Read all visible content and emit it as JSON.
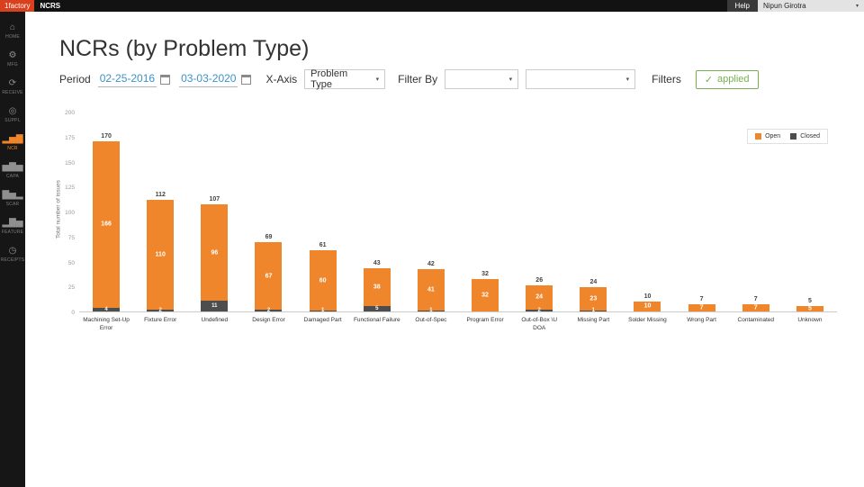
{
  "topbar": {
    "brand": "1factory",
    "app_name": "NCRS",
    "help_label": "Help",
    "user_name": "Nipun Girotra"
  },
  "icons": {
    "chevron": "▾",
    "caret": "▾",
    "check": "✓"
  },
  "sidebar": {
    "items": [
      {
        "label": "HOME",
        "icon": "home-icon",
        "glyph": "⌂",
        "active": false
      },
      {
        "label": "MFG",
        "icon": "mfg-icon",
        "glyph": "⚙",
        "active": false
      },
      {
        "label": "RECEIVE",
        "icon": "receive-icon",
        "glyph": "⟳",
        "active": false
      },
      {
        "label": "SUPPL",
        "icon": "supplier-icon",
        "glyph": "◎",
        "active": false
      },
      {
        "label": "NCR",
        "icon": "ncr-chart-icon",
        "glyph": "▂▅▇",
        "active": true
      },
      {
        "label": "CAPA",
        "icon": "capa-icon",
        "glyph": "▅▇▅",
        "active": false
      },
      {
        "label": "SCAR",
        "icon": "scar-icon",
        "glyph": "▇▅▂",
        "active": false
      },
      {
        "label": "FEATURE",
        "icon": "feature-icon",
        "glyph": "▂▇▅",
        "active": false
      },
      {
        "label": "RECEIPTS",
        "icon": "receipts-icon",
        "glyph": "◷",
        "active": false
      }
    ]
  },
  "page": {
    "title": "NCRs (by Problem Type)"
  },
  "controls": {
    "period_label": "Period",
    "date_from": "02-25-2016",
    "date_to": "03-03-2020",
    "xaxis_label": "X-Axis",
    "xaxis_value": "Problem Type",
    "filter_by_label": "Filter By",
    "filter1_value": "",
    "filter2_value": "",
    "filters_label": "Filters",
    "applied_label": "applied"
  },
  "chart_data": {
    "type": "bar",
    "stacked": true,
    "title": "",
    "xlabel": "",
    "ylabel": "Total number of issues",
    "ylim": [
      0,
      200
    ],
    "yticks": [
      0,
      25,
      50,
      75,
      100,
      125,
      150,
      175,
      200
    ],
    "grid": false,
    "legend_position": "top-right",
    "categories": [
      "Machining Set-Up Error",
      "Fixture Error",
      "Undefined",
      "Design Error",
      "Damaged Part",
      "Functional Failure",
      "Out-of-Spec",
      "Program Error",
      "Out-of-Box \\U DOA",
      "Missing Part",
      "Solder Missing",
      "Wrong Part",
      "Contaminated",
      "Unknown"
    ],
    "series": [
      {
        "name": "Open",
        "color": "#f0862b",
        "values": [
          166,
          110,
          96,
          67,
          60,
          38,
          41,
          32,
          24,
          23,
          10,
          7,
          7,
          5
        ]
      },
      {
        "name": "Closed",
        "color": "#4d4d4d",
        "values": [
          4,
          2,
          11,
          2,
          1,
          5,
          1,
          0,
          2,
          1,
          0,
          0,
          0,
          0
        ]
      }
    ],
    "totals": [
      170,
      112,
      107,
      69,
      61,
      43,
      42,
      32,
      26,
      24,
      10,
      7,
      7,
      5
    ]
  }
}
